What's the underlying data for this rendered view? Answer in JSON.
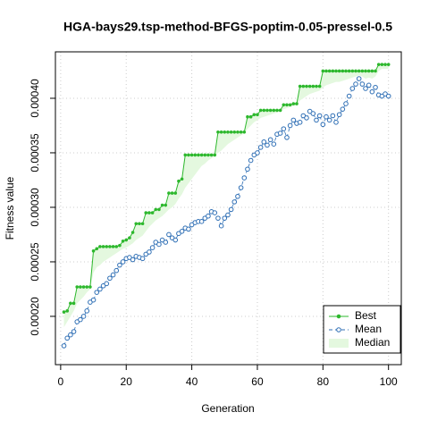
{
  "chart_data": {
    "type": "line",
    "title": "HGA-bays29.tsp-method-BFGS-poptim-0.05-pressel-0.5",
    "xlabel": "Generation",
    "ylabel": "Fitness value",
    "x": [
      1,
      2,
      3,
      4,
      5,
      6,
      7,
      8,
      9,
      10,
      11,
      12,
      13,
      14,
      15,
      16,
      17,
      18,
      19,
      20,
      21,
      22,
      23,
      24,
      25,
      26,
      27,
      28,
      29,
      30,
      31,
      32,
      33,
      34,
      35,
      36,
      37,
      38,
      39,
      40,
      41,
      42,
      43,
      44,
      45,
      46,
      47,
      48,
      49,
      50,
      51,
      52,
      53,
      54,
      55,
      56,
      57,
      58,
      59,
      60,
      61,
      62,
      63,
      64,
      65,
      66,
      67,
      68,
      69,
      70,
      71,
      72,
      73,
      74,
      75,
      76,
      77,
      78,
      79,
      80,
      81,
      82,
      83,
      84,
      85,
      86,
      87,
      88,
      89,
      90,
      91,
      92,
      93,
      94,
      95,
      96,
      97,
      98,
      99,
      100
    ],
    "series": [
      {
        "name": "Best",
        "color": "#2db82d",
        "values": [
          0.000204,
          0.000205,
          0.000212,
          0.000212,
          0.000227,
          0.000227,
          0.000227,
          0.000227,
          0.000227,
          0.00026,
          0.000262,
          0.000264,
          0.000264,
          0.000264,
          0.000264,
          0.000264,
          0.000264,
          0.000265,
          0.000269,
          0.00027,
          0.000272,
          0.000277,
          0.000285,
          0.000285,
          0.000285,
          0.000295,
          0.000295,
          0.000295,
          0.000298,
          0.000298,
          0.000302,
          0.000302,
          0.000313,
          0.000313,
          0.000313,
          0.000324,
          0.000326,
          0.000348,
          0.000348,
          0.000348,
          0.000348,
          0.000348,
          0.000348,
          0.000348,
          0.000348,
          0.000348,
          0.000348,
          0.000369,
          0.000369,
          0.000369,
          0.000369,
          0.000369,
          0.000369,
          0.000369,
          0.000369,
          0.000369,
          0.000383,
          0.000383,
          0.000385,
          0.000385,
          0.000389,
          0.000389,
          0.000389,
          0.000389,
          0.000389,
          0.000389,
          0.000389,
          0.000394,
          0.000394,
          0.000394,
          0.000395,
          0.000395,
          0.000411,
          0.000411,
          0.000411,
          0.000411,
          0.000411,
          0.000411,
          0.000411,
          0.000425,
          0.000425,
          0.000425,
          0.000425,
          0.000425,
          0.000425,
          0.000425,
          0.000425,
          0.000425,
          0.000425,
          0.000425,
          0.000425,
          0.000425,
          0.000425,
          0.000425,
          0.000425,
          0.000425,
          0.000431,
          0.000431,
          0.000431,
          0.000431
        ]
      },
      {
        "name": "Mean",
        "color": "#2f6fb5",
        "values": [
          0.000173,
          0.00018,
          0.000183,
          0.000186,
          0.000195,
          0.000197,
          0.0002,
          0.000205,
          0.000213,
          0.000215,
          0.000222,
          0.000225,
          0.000228,
          0.00023,
          0.000235,
          0.000238,
          0.000242,
          0.000247,
          0.00025,
          0.000253,
          0.000254,
          0.000252,
          0.000255,
          0.000254,
          0.000253,
          0.000257,
          0.000259,
          0.000263,
          0.000268,
          0.000266,
          0.00027,
          0.000268,
          0.000275,
          0.000272,
          0.00027,
          0.000276,
          0.000278,
          0.000281,
          0.00028,
          0.000284,
          0.000286,
          0.000287,
          0.000287,
          0.00029,
          0.000292,
          0.000296,
          0.000295,
          0.00029,
          0.000283,
          0.00029,
          0.000293,
          0.000298,
          0.000305,
          0.00031,
          0.000318,
          0.000327,
          0.000335,
          0.000343,
          0.000348,
          0.00035,
          0.000355,
          0.00036,
          0.000357,
          0.000362,
          0.000358,
          0.000367,
          0.000368,
          0.000372,
          0.000364,
          0.000375,
          0.00038,
          0.000377,
          0.000378,
          0.000384,
          0.000382,
          0.000388,
          0.000386,
          0.00038,
          0.000384,
          0.000376,
          0.000383,
          0.00038,
          0.000384,
          0.000378,
          0.000385,
          0.00039,
          0.000395,
          0.000402,
          0.000409,
          0.000413,
          0.000418,
          0.000413,
          0.000409,
          0.000412,
          0.000406,
          0.00041,
          0.000403,
          0.000402,
          0.000404,
          0.000402
        ]
      },
      {
        "name": "Median",
        "color": "#e4f8df",
        "values": [
          0.00019,
          0.000195,
          0.0002,
          0.000205,
          0.000212,
          0.000215,
          0.000218,
          0.000222,
          0.000225,
          0.00024,
          0.000245,
          0.000247,
          0.00025,
          0.000252,
          0.000254,
          0.000256,
          0.000258,
          0.00026,
          0.000262,
          0.000263,
          0.000265,
          0.000267,
          0.00027,
          0.000272,
          0.000274,
          0.000278,
          0.000282,
          0.000285,
          0.000288,
          0.00029,
          0.000292,
          0.000295,
          0.000298,
          0.0003,
          0.000303,
          0.000308,
          0.000312,
          0.000318,
          0.000322,
          0.000326,
          0.00033,
          0.000334,
          0.000338,
          0.00034,
          0.000343,
          0.000345,
          0.000347,
          0.00035,
          0.000352,
          0.000355,
          0.000358,
          0.00036,
          0.000362,
          0.000364,
          0.000366,
          0.000368,
          0.000372,
          0.000375,
          0.000378,
          0.00038,
          0.000382,
          0.000383,
          0.000384,
          0.000385,
          0.000386,
          0.000387,
          0.000388,
          0.00039,
          0.000391,
          0.000392,
          0.000393,
          0.000394,
          0.000398,
          0.0004,
          0.000402,
          0.000404,
          0.000405,
          0.000406,
          0.000407,
          0.00041,
          0.000412,
          0.000413,
          0.000414,
          0.000415,
          0.000415,
          0.000416,
          0.000417,
          0.000418,
          0.000419,
          0.00042,
          0.000421,
          0.00042,
          0.000418,
          0.000419,
          0.000418,
          0.00042,
          0.000425,
          0.000427,
          0.000427,
          0.000427
        ]
      }
    ],
    "xlim": [
      -1.6,
      103.9
    ],
    "xticks": [
      0,
      20,
      40,
      60,
      80,
      100
    ],
    "ylim": [
      0.0001557,
      0.0004426
    ],
    "yticks": [
      {
        "value": 0.0002,
        "label": "0.00020"
      },
      {
        "value": 0.00025,
        "label": "0.00025"
      },
      {
        "value": 0.0003,
        "label": "0.00030"
      },
      {
        "value": 0.00035,
        "label": "0.00035"
      },
      {
        "value": 0.0004,
        "label": "0.00040"
      }
    ],
    "grid": true,
    "legend": "bottom-right"
  }
}
